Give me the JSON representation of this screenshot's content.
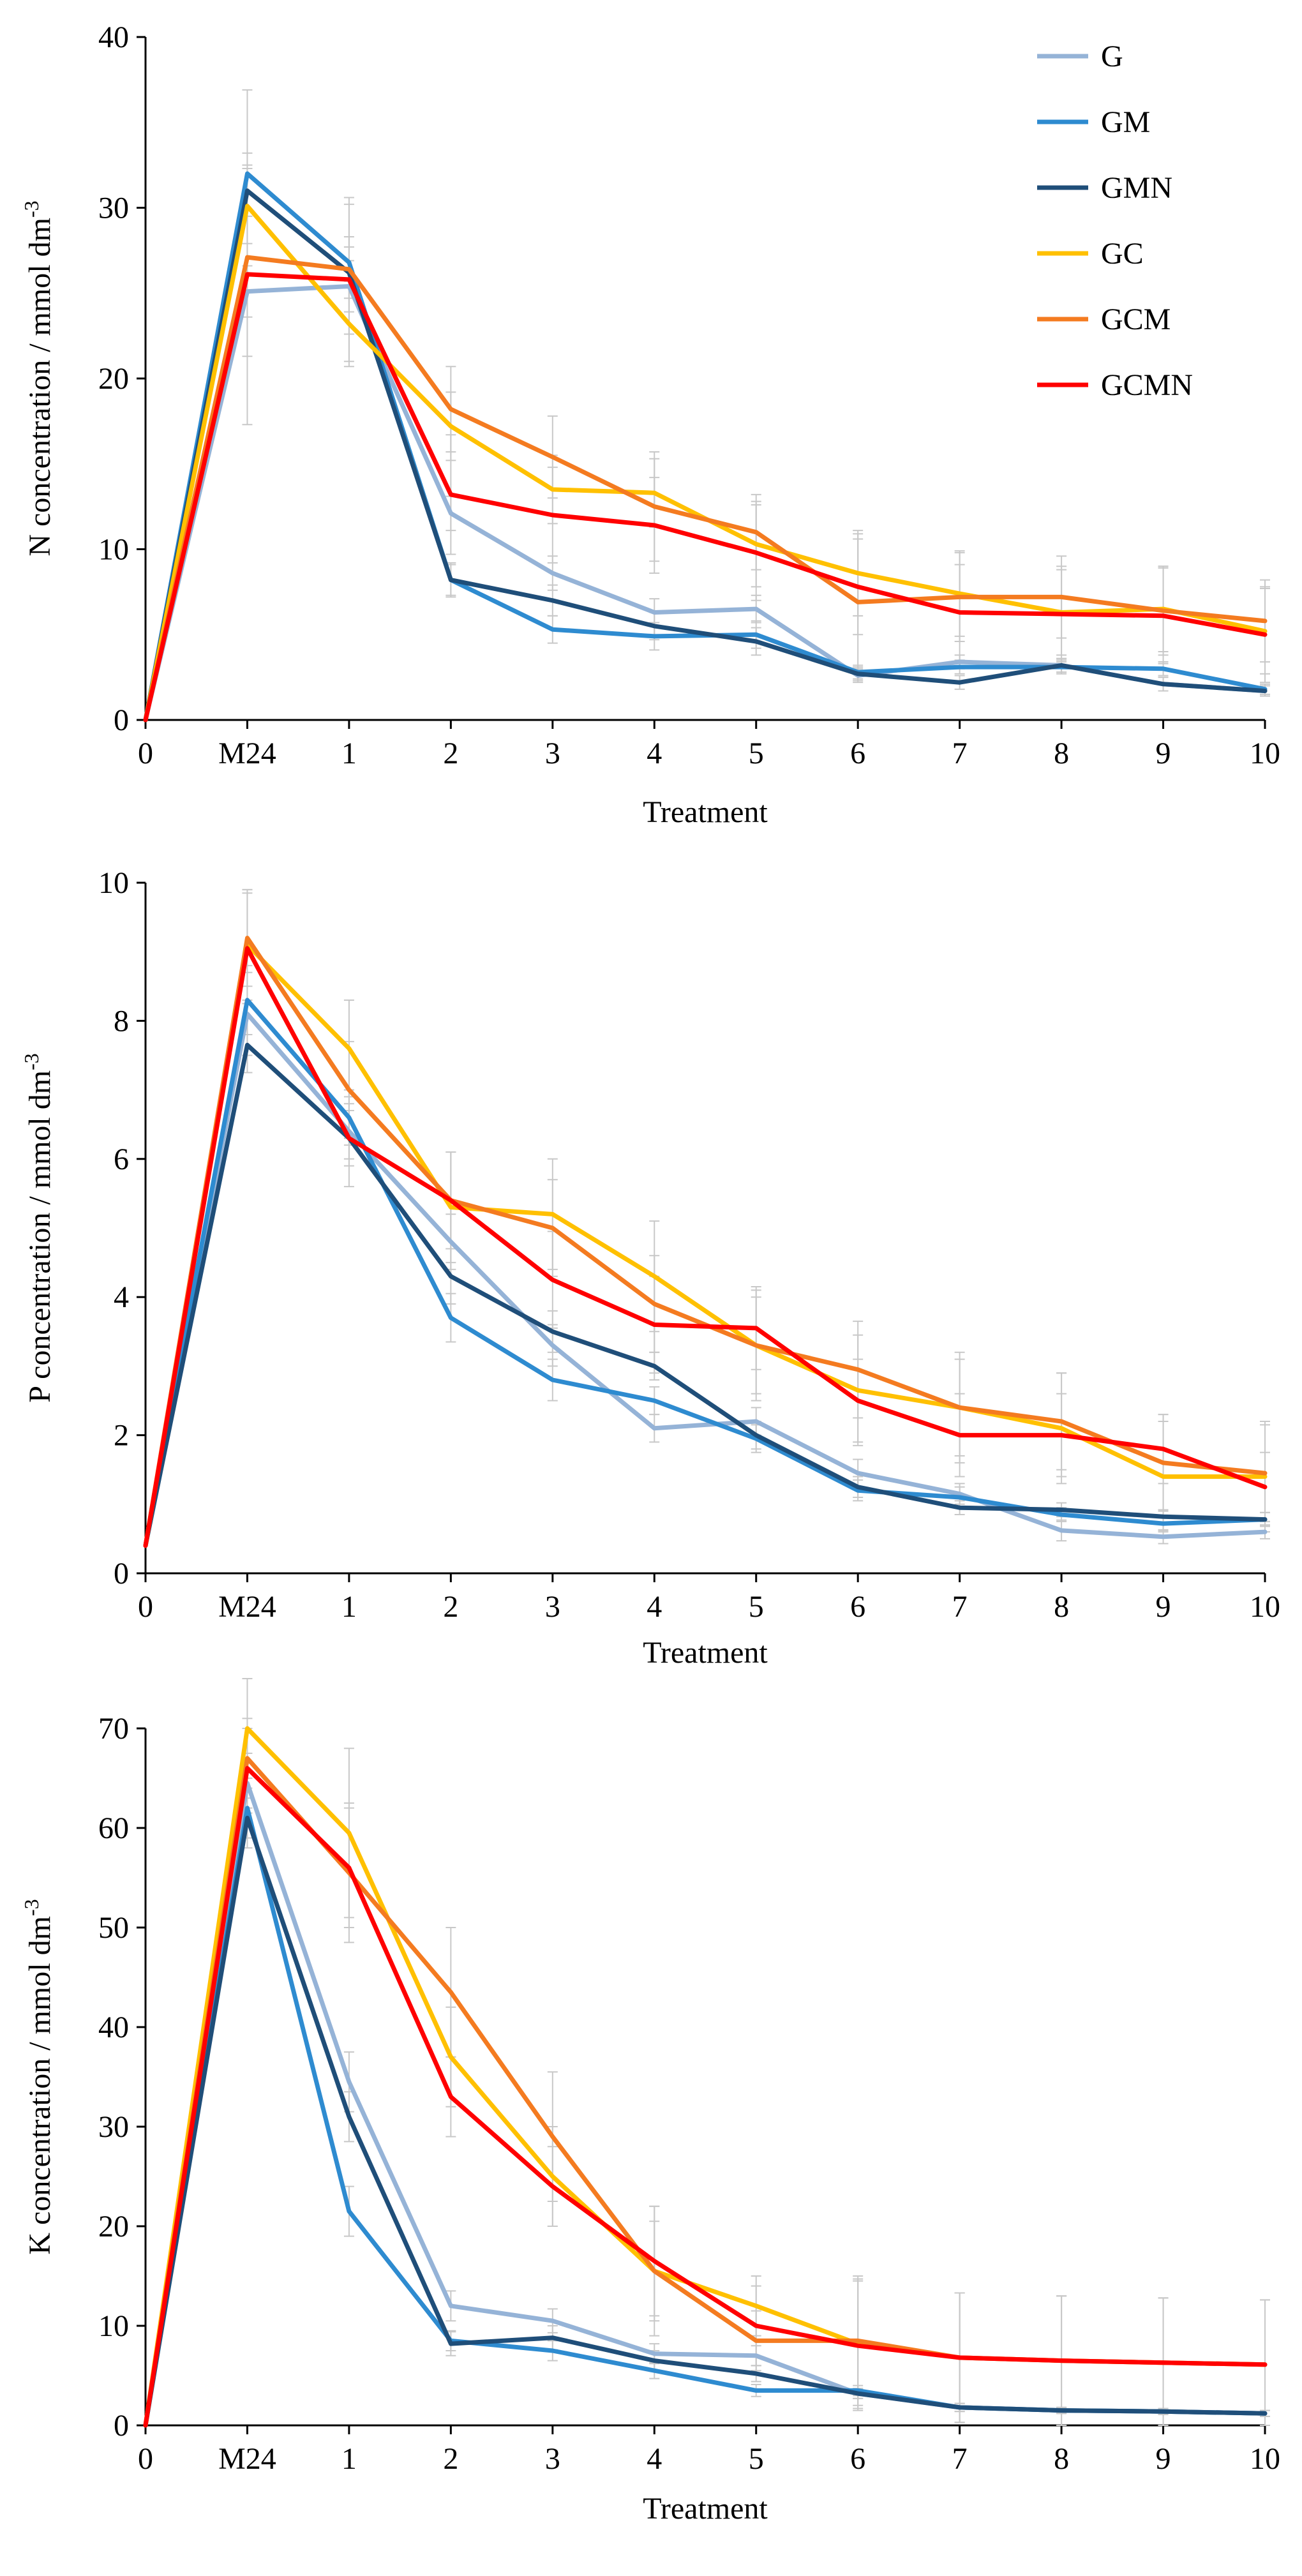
{
  "chart_data": [
    {
      "type": "line",
      "title": "",
      "xlabel": "Treatment",
      "ylabel": "N concentration / mmol dm",
      "ylabel_superscript": "-3",
      "categories": [
        "0",
        "M24",
        "1",
        "2",
        "3",
        "4",
        "5",
        "6",
        "7",
        "8",
        "9",
        "10"
      ],
      "ylim": [
        0,
        40
      ],
      "yticks": [
        "0",
        "10",
        "20",
        "30",
        "40"
      ],
      "grid": false,
      "legend": "top-right",
      "series": [
        {
          "name": "G",
          "color": "#95B3D7",
          "values": [
            0,
            25.1,
            25.4,
            12.1,
            8.6,
            6.3,
            6.5,
            2.6,
            3.4,
            3.2,
            2.1,
            1.7
          ],
          "errors": [
            0,
            1.5,
            1.5,
            1.0,
            1.0,
            0.8,
            0.8,
            0.4,
            0.4,
            0.4,
            0.4,
            0.3
          ]
        },
        {
          "name": "GM",
          "color": "#2E8BD0",
          "values": [
            0,
            32.0,
            26.8,
            8.2,
            5.3,
            4.9,
            5.0,
            2.8,
            3.1,
            3.1,
            3.0,
            1.8
          ],
          "errors": [
            0,
            1.2,
            1.5,
            0.9,
            0.8,
            0.8,
            0.8,
            0.4,
            0.4,
            0.4,
            0.4,
            0.3
          ]
        },
        {
          "name": "GMN",
          "color": "#1F4E79",
          "values": [
            0,
            31.0,
            26.2,
            8.2,
            7.0,
            5.5,
            4.6,
            2.7,
            2.2,
            3.2,
            2.1,
            1.7
          ],
          "errors": [
            0,
            1.5,
            1.5,
            1.0,
            0.9,
            0.8,
            0.8,
            0.4,
            0.4,
            0.4,
            0.4,
            0.3
          ]
        },
        {
          "name": "GC",
          "color": "#FFC000",
          "values": [
            0,
            30.1,
            23.2,
            17.2,
            13.5,
            13.3,
            10.3,
            8.6,
            7.4,
            6.3,
            6.5,
            5.2
          ],
          "errors": [
            0,
            2.2,
            2.5,
            2.0,
            2.0,
            2.0,
            2.5,
            2.5,
            2.5,
            2.5,
            2.5,
            2.5
          ]
        },
        {
          "name": "GCM",
          "color": "#F47B20",
          "values": [
            0,
            27.1,
            26.4,
            18.2,
            15.4,
            12.5,
            11.0,
            6.9,
            7.2,
            7.2,
            6.4,
            5.8
          ],
          "errors": [
            0,
            9.8,
            3.8,
            2.5,
            2.4,
            3.2,
            2.2,
            4.0,
            2.6,
            2.4,
            2.6,
            2.4
          ]
        },
        {
          "name": "GCMN",
          "color": "#FF0000",
          "values": [
            0,
            26.1,
            25.8,
            13.2,
            12.0,
            11.4,
            9.8,
            7.8,
            6.3,
            6.2,
            6.1,
            5.0
          ],
          "errors": [
            0,
            4.8,
            4.8,
            3.5,
            2.8,
            2.8,
            2.8,
            2.8,
            2.8,
            2.8,
            2.8,
            2.8
          ]
        }
      ]
    },
    {
      "type": "line",
      "title": "",
      "xlabel": "Treatment",
      "ylabel": "P concentration / mmol dm",
      "ylabel_superscript": "-3",
      "categories": [
        "0",
        "M24",
        "1",
        "2",
        "3",
        "4",
        "5",
        "6",
        "7",
        "8",
        "9",
        "10"
      ],
      "ylim": [
        0,
        10
      ],
      "yticks": [
        "0",
        "2",
        "4",
        "6",
        "8",
        "10"
      ],
      "grid": false,
      "legend": "none",
      "series": [
        {
          "name": "G",
          "color": "#95B3D7",
          "values": [
            0.4,
            8.1,
            6.4,
            4.8,
            3.3,
            2.1,
            2.2,
            1.45,
            1.15,
            0.62,
            0.53,
            0.6
          ],
          "errors": [
            0,
            0.6,
            0.4,
            0.4,
            0.3,
            0.2,
            0.2,
            0.2,
            0.15,
            0.15,
            0.1,
            0.1
          ]
        },
        {
          "name": "GM",
          "color": "#2E8BD0",
          "values": [
            0.4,
            8.3,
            6.6,
            3.7,
            2.8,
            2.5,
            1.95,
            1.2,
            1.1,
            0.85,
            0.72,
            0.78
          ],
          "errors": [
            0,
            0.5,
            0.4,
            0.35,
            0.3,
            0.2,
            0.2,
            0.15,
            0.15,
            0.1,
            0.1,
            0.1
          ]
        },
        {
          "name": "GMN",
          "color": "#1F4E79",
          "values": [
            0.4,
            7.65,
            6.3,
            4.3,
            3.5,
            3.0,
            2.0,
            1.25,
            0.95,
            0.92,
            0.82,
            0.78
          ],
          "errors": [
            0,
            0.4,
            0.4,
            0.4,
            0.3,
            0.2,
            0.2,
            0.15,
            0.1,
            0.1,
            0.1,
            0.1
          ]
        },
        {
          "name": "GC",
          "color": "#FFC000",
          "values": [
            0.4,
            9.1,
            7.6,
            5.3,
            5.2,
            4.3,
            3.3,
            2.65,
            2.4,
            2.1,
            1.4,
            1.4
          ],
          "errors": [
            0,
            0.8,
            0.7,
            0.8,
            0.8,
            0.8,
            0.8,
            0.8,
            0.8,
            0.8,
            0.8,
            0.8
          ]
        },
        {
          "name": "GCM",
          "color": "#F47B20",
          "values": [
            0.4,
            9.2,
            7.0,
            5.4,
            5.0,
            3.9,
            3.3,
            2.95,
            2.4,
            2.2,
            1.6,
            1.45
          ],
          "errors": [
            0,
            0.7,
            0.7,
            0.7,
            0.7,
            0.7,
            0.7,
            0.7,
            0.7,
            0.7,
            0.7,
            0.7
          ]
        },
        {
          "name": "GCMN",
          "color": "#FF0000",
          "values": [
            0.4,
            9.05,
            6.3,
            5.4,
            4.25,
            3.6,
            3.55,
            2.5,
            2.0,
            2.0,
            1.8,
            1.25
          ],
          "errors": [
            0,
            0.8,
            0.7,
            0.7,
            0.7,
            0.7,
            0.6,
            0.6,
            0.6,
            0.6,
            0.5,
            0.5
          ]
        }
      ]
    },
    {
      "type": "line",
      "title": "",
      "xlabel": "Treatment",
      "ylabel": "K concentration / mmol dm",
      "ylabel_superscript": "-3",
      "categories": [
        "0",
        "M24",
        "1",
        "2",
        "3",
        "4",
        "5",
        "6",
        "7",
        "8",
        "9",
        "10"
      ],
      "ylim": [
        0,
        70
      ],
      "yticks": [
        "0",
        "10",
        "20",
        "30",
        "40",
        "50",
        "60",
        "70"
      ],
      "grid": false,
      "legend": "none",
      "series": [
        {
          "name": "G",
          "color": "#95B3D7",
          "values": [
            0,
            64.5,
            34.5,
            12.0,
            10.5,
            7.2,
            7.0,
            3.2,
            1.8,
            1.5,
            1.4,
            1.2
          ],
          "errors": [
            0,
            3.0,
            3.0,
            1.5,
            1.2,
            1.0,
            1.0,
            0.5,
            0.4,
            0.3,
            0.3,
            0.3
          ]
        },
        {
          "name": "GM",
          "color": "#2E8BD0",
          "values": [
            0,
            62.0,
            21.5,
            8.5,
            7.5,
            5.5,
            3.5,
            3.5,
            1.8,
            1.5,
            1.4,
            1.2
          ],
          "errors": [
            0,
            3.0,
            2.5,
            1.0,
            1.0,
            0.8,
            0.6,
            0.5,
            0.4,
            0.3,
            0.3,
            0.3
          ]
        },
        {
          "name": "GMN",
          "color": "#1F4E79",
          "values": [
            0,
            61.0,
            31.0,
            8.2,
            8.8,
            6.5,
            5.2,
            3.2,
            1.8,
            1.5,
            1.4,
            1.2
          ],
          "errors": [
            0,
            3.0,
            2.5,
            1.2,
            1.2,
            1.0,
            0.8,
            0.5,
            0.4,
            0.3,
            0.3,
            0.3
          ]
        },
        {
          "name": "GC",
          "color": "#FFC000",
          "values": [
            0,
            70.0,
            59.5,
            37.0,
            25.0,
            15.5,
            12.0,
            8.2,
            6.8,
            6.5,
            6.3,
            6.1
          ],
          "errors": [
            0,
            5.0,
            8.5,
            5.0,
            5.0,
            5.0,
            3.0,
            6.5,
            6.5,
            6.5,
            6.5,
            6.5
          ]
        },
        {
          "name": "GCM",
          "color": "#F47B20",
          "values": [
            0,
            67.0,
            55.5,
            43.5,
            29.0,
            15.5,
            8.5,
            8.5,
            6.8,
            6.5,
            6.3,
            6.1
          ],
          "errors": [
            0,
            4.0,
            7.0,
            6.5,
            6.5,
            6.5,
            3.0,
            6.5,
            6.5,
            6.5,
            6.5,
            6.5
          ]
        },
        {
          "name": "GCMN",
          "color": "#FF0000",
          "values": [
            0,
            66.0,
            56.0,
            33.0,
            24.0,
            16.5,
            10.0,
            8.0,
            6.8,
            6.5,
            6.3,
            6.1
          ],
          "errors": [
            0,
            4.0,
            6.0,
            4.0,
            4.0,
            5.5,
            4.0,
            6.5,
            6.5,
            6.5,
            6.5,
            6.5
          ]
        }
      ]
    }
  ]
}
